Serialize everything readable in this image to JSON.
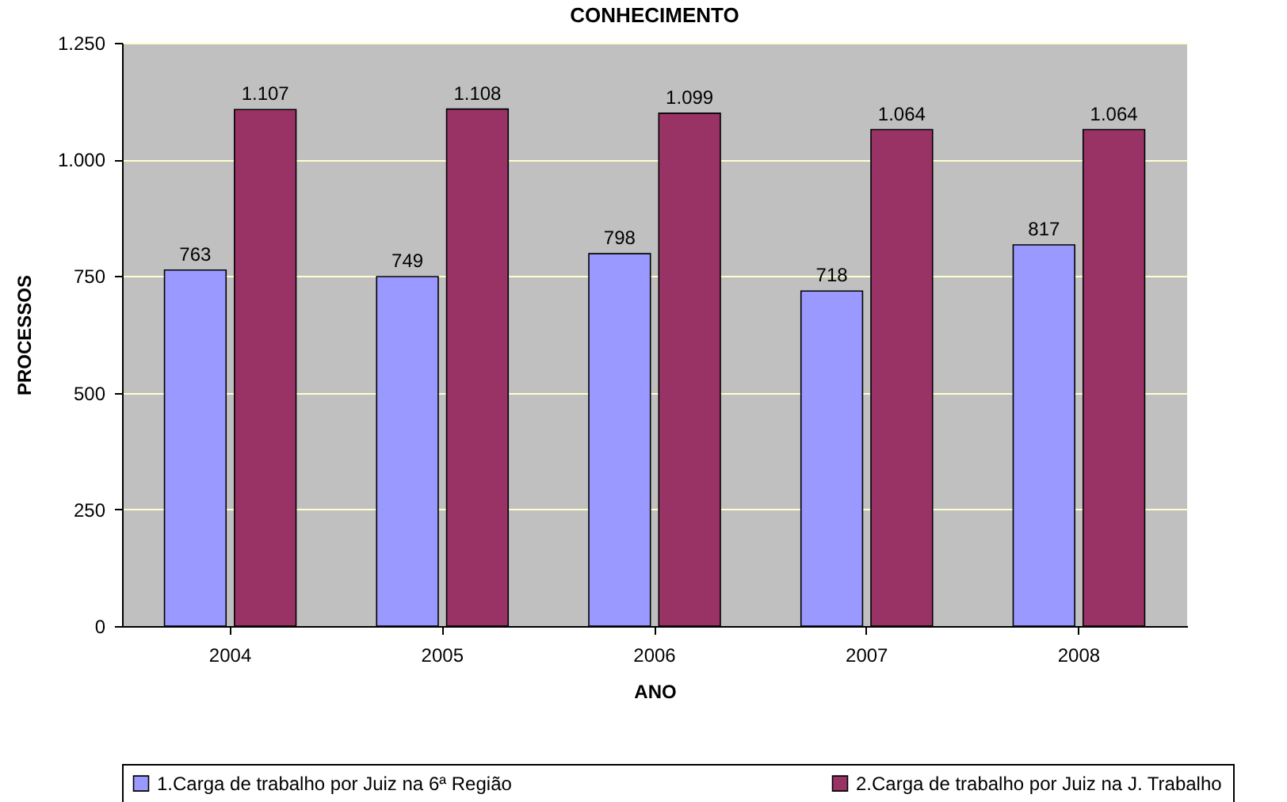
{
  "chart_data": {
    "type": "bar",
    "title": "CONHECIMENTO",
    "xlabel": "ANO",
    "ylabel": "PROCESSOS",
    "categories": [
      "2004",
      "2005",
      "2006",
      "2007",
      "2008"
    ],
    "series": [
      {
        "name": "1.Carga de trabalho por Juiz na 6ª Região",
        "color": "#9999ff",
        "values": [
          763,
          749,
          798,
          718,
          817
        ],
        "value_labels": [
          "763",
          "749",
          "798",
          "718",
          "817"
        ]
      },
      {
        "name": "2.Carga de trabalho por Juiz na J. Trabalho",
        "color": "#993366",
        "values": [
          1107,
          1108,
          1099,
          1064,
          1064
        ],
        "value_labels": [
          "1.107",
          "1.108",
          "1.099",
          "1.064",
          "1.064"
        ]
      }
    ],
    "ylim": [
      0,
      1250
    ],
    "yticks": [
      {
        "value": 0,
        "label": "0"
      },
      {
        "value": 250,
        "label": "250"
      },
      {
        "value": 500,
        "label": "500"
      },
      {
        "value": 750,
        "label": "750"
      },
      {
        "value": 1000,
        "label": "1.000"
      },
      {
        "value": 1250,
        "label": "1.250"
      }
    ],
    "grid": "y",
    "legend": "bottom"
  }
}
